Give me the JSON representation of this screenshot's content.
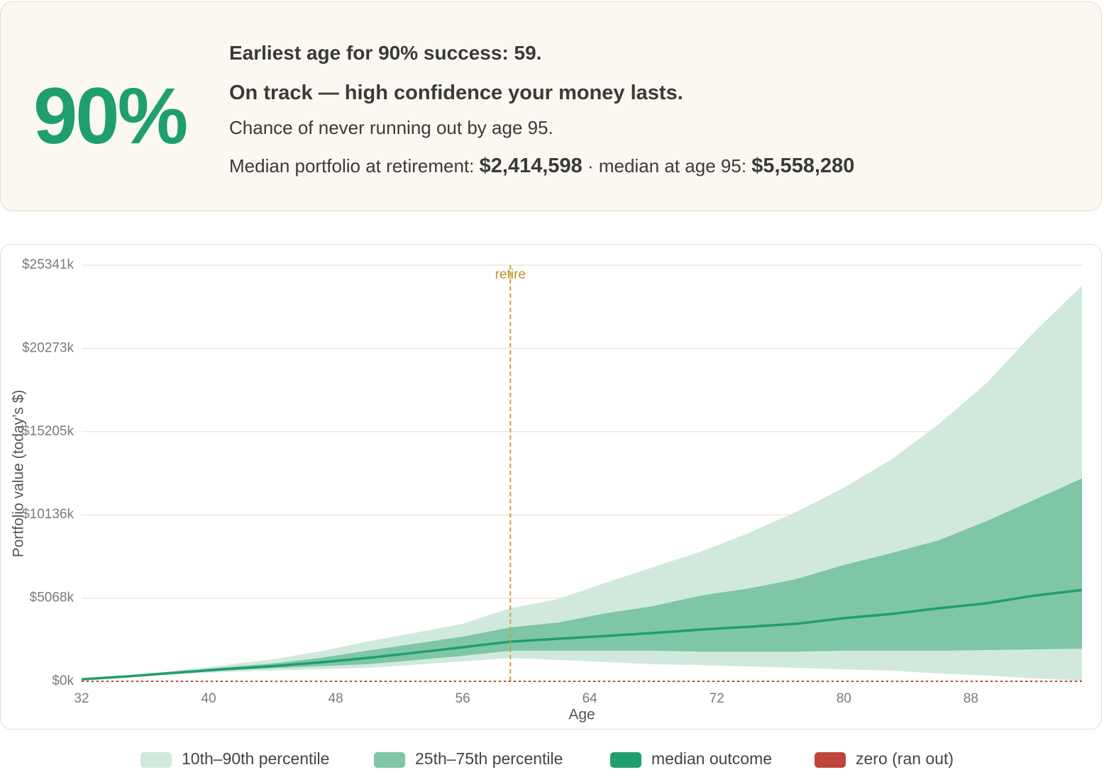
{
  "summary": {
    "big_value": "90%",
    "headline": "Earliest age for 90% success: 59.",
    "status": "On track — high confidence your money lasts.",
    "note": "Chance of never running out by age 95.",
    "median_label": "Median portfolio at retirement:",
    "median_retire": "$2,414,598",
    "median_end_label": "· median at age 95:",
    "median_end": "$5,558,280"
  },
  "chart_data": {
    "type": "band",
    "x_label": "Age",
    "y_label": "Portfolio value (today’s $)",
    "x": [
      32,
      35,
      38,
      41,
      44,
      47,
      50,
      53,
      56,
      59,
      62,
      65,
      68,
      71,
      74,
      77,
      80,
      83,
      86,
      89,
      92,
      95
    ],
    "xlim": [
      32,
      95
    ],
    "xticks": [
      32,
      40,
      48,
      56,
      64,
      72,
      80,
      88
    ],
    "ylim": [
      0,
      25341
    ],
    "yticks": [
      {
        "value": 0,
        "label": "$0k"
      },
      {
        "value": 5068,
        "label": "$5068k"
      },
      {
        "value": 10136,
        "label": "$10136k"
      },
      {
        "value": 15205,
        "label": "$15205k"
      },
      {
        "value": 20273,
        "label": "$20273k"
      },
      {
        "value": 25341,
        "label": "$25341k"
      }
    ],
    "grid": true,
    "bands": [
      {
        "name": "10th–90th percentile",
        "color": "#d0e9dc",
        "lower": [
          110,
          270,
          420,
          560,
          660,
          740,
          820,
          1010,
          1210,
          1420,
          1300,
          1170,
          1040,
          990,
          900,
          820,
          730,
          650,
          470,
          350,
          170,
          40
        ],
        "upper": [
          130,
          360,
          650,
          980,
          1340,
          1820,
          2420,
          2950,
          3500,
          4450,
          5010,
          6000,
          6950,
          7900,
          9020,
          10320,
          11790,
          13510,
          15670,
          18170,
          21280,
          24090
        ]
      },
      {
        "name": "25th–75th percentile",
        "color": "#7ec6a6",
        "lower": [
          115,
          290,
          480,
          650,
          800,
          920,
          1040,
          1290,
          1550,
          1860,
          1860,
          1860,
          1860,
          1810,
          1810,
          1810,
          1860,
          1860,
          1860,
          1900,
          1940,
          1990
        ],
        "upper": [
          125,
          330,
          580,
          850,
          1080,
          1420,
          1860,
          2290,
          2720,
          3280,
          3580,
          4140,
          4580,
          5220,
          5650,
          6220,
          7080,
          7810,
          8590,
          9760,
          11050,
          12350
        ]
      }
    ],
    "series": [
      {
        "name": "median outcome",
        "color": "#1f9e6e",
        "values": [
          120,
          310,
          530,
          740,
          920,
          1150,
          1420,
          1740,
          2070,
          2415,
          2590,
          2760,
          2940,
          3150,
          3320,
          3500,
          3840,
          4100,
          4450,
          4750,
          5220,
          5558
        ]
      }
    ],
    "reference_line": {
      "name": "zero (ran out)",
      "color": "#c0443a",
      "value": 0
    },
    "annotation": {
      "label": "retire",
      "x": 59,
      "color": "#c9a23a"
    }
  }
}
